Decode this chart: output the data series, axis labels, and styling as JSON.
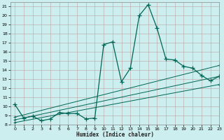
{
  "xlabel": "Humidex (Indice chaleur)",
  "bg_color": "#cceeee",
  "grid_color": "#bb9999",
  "line_color": "#006655",
  "xlim": [
    -0.5,
    23
  ],
  "ylim": [
    8,
    21.5
  ],
  "xticks": [
    0,
    1,
    2,
    3,
    4,
    5,
    6,
    7,
    8,
    9,
    10,
    11,
    12,
    13,
    14,
    15,
    16,
    17,
    18,
    19,
    20,
    21,
    22,
    23
  ],
  "yticks": [
    8,
    9,
    10,
    11,
    12,
    13,
    14,
    15,
    16,
    17,
    18,
    19,
    20,
    21
  ],
  "series1_x": [
    0,
    1,
    2,
    3,
    4,
    5,
    6,
    7,
    8,
    9,
    10,
    11,
    12,
    13,
    14,
    15,
    16,
    17,
    18,
    19,
    20,
    21,
    22,
    23
  ],
  "series1_y": [
    10.2,
    8.7,
    8.9,
    8.4,
    8.6,
    9.3,
    9.2,
    9.2,
    8.6,
    8.7,
    16.8,
    17.1,
    12.7,
    14.2,
    20.0,
    21.2,
    18.6,
    15.2,
    15.1,
    14.4,
    14.2,
    13.4,
    12.8,
    13.3
  ],
  "series2_x": [
    0,
    23
  ],
  "series2_y": [
    8.8,
    14.5
  ],
  "series3_x": [
    0,
    23
  ],
  "series3_y": [
    8.5,
    13.3
  ],
  "series4_x": [
    0,
    23
  ],
  "series4_y": [
    8.2,
    12.4
  ]
}
